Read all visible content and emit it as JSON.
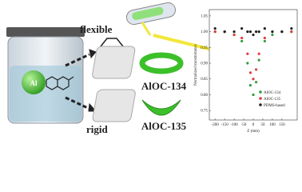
{
  "labels": {
    "flexible": "flexible",
    "rigid": "rigid",
    "metal": "Al"
  },
  "products": [
    "AlOC-134",
    "AlOC-135"
  ],
  "chart_data": {
    "type": "scatter",
    "xlabel": "Z (mm)",
    "ylabel": "Normalized transmittance",
    "x": [
      -200,
      -150,
      -100,
      -60,
      -30,
      -15,
      0,
      15,
      30,
      60,
      100,
      150,
      200
    ],
    "series": [
      {
        "name": "AlOC-134",
        "color": "#2e9e3a",
        "values": [
          1.0,
          1.0,
          0.99,
          0.97,
          0.9,
          0.83,
          0.8,
          0.84,
          0.91,
          0.97,
          0.99,
          1.0,
          1.0
        ]
      },
      {
        "name": "AlOC-135",
        "color": "#e23b3b",
        "values": [
          1.0,
          1.0,
          0.99,
          0.98,
          0.93,
          0.87,
          0.85,
          0.88,
          0.93,
          0.98,
          1.0,
          1.0,
          1.0
        ]
      },
      {
        "name": "PDMS-based",
        "color": "#222222",
        "values": [
          1.01,
          1.0,
          1.0,
          1.01,
          1.0,
          1.0,
          0.99,
          1.0,
          1.0,
          1.01,
          1.0,
          1.0,
          1.01
        ]
      }
    ],
    "xlim": [
      -230,
      230
    ],
    "xticks": [
      -200,
      -150,
      -100,
      -50,
      0,
      50,
      100,
      150
    ],
    "ylim": [
      0.72,
      1.07
    ],
    "yticks": [
      0.75,
      {
        "value": 0.8,
        "label": "0.80"
      },
      0.85,
      {
        "value": 0.9,
        "label": "0.90"
      },
      0.95,
      {
        "value": 1.0,
        "label": "1.00"
      },
      1.05
    ]
  }
}
